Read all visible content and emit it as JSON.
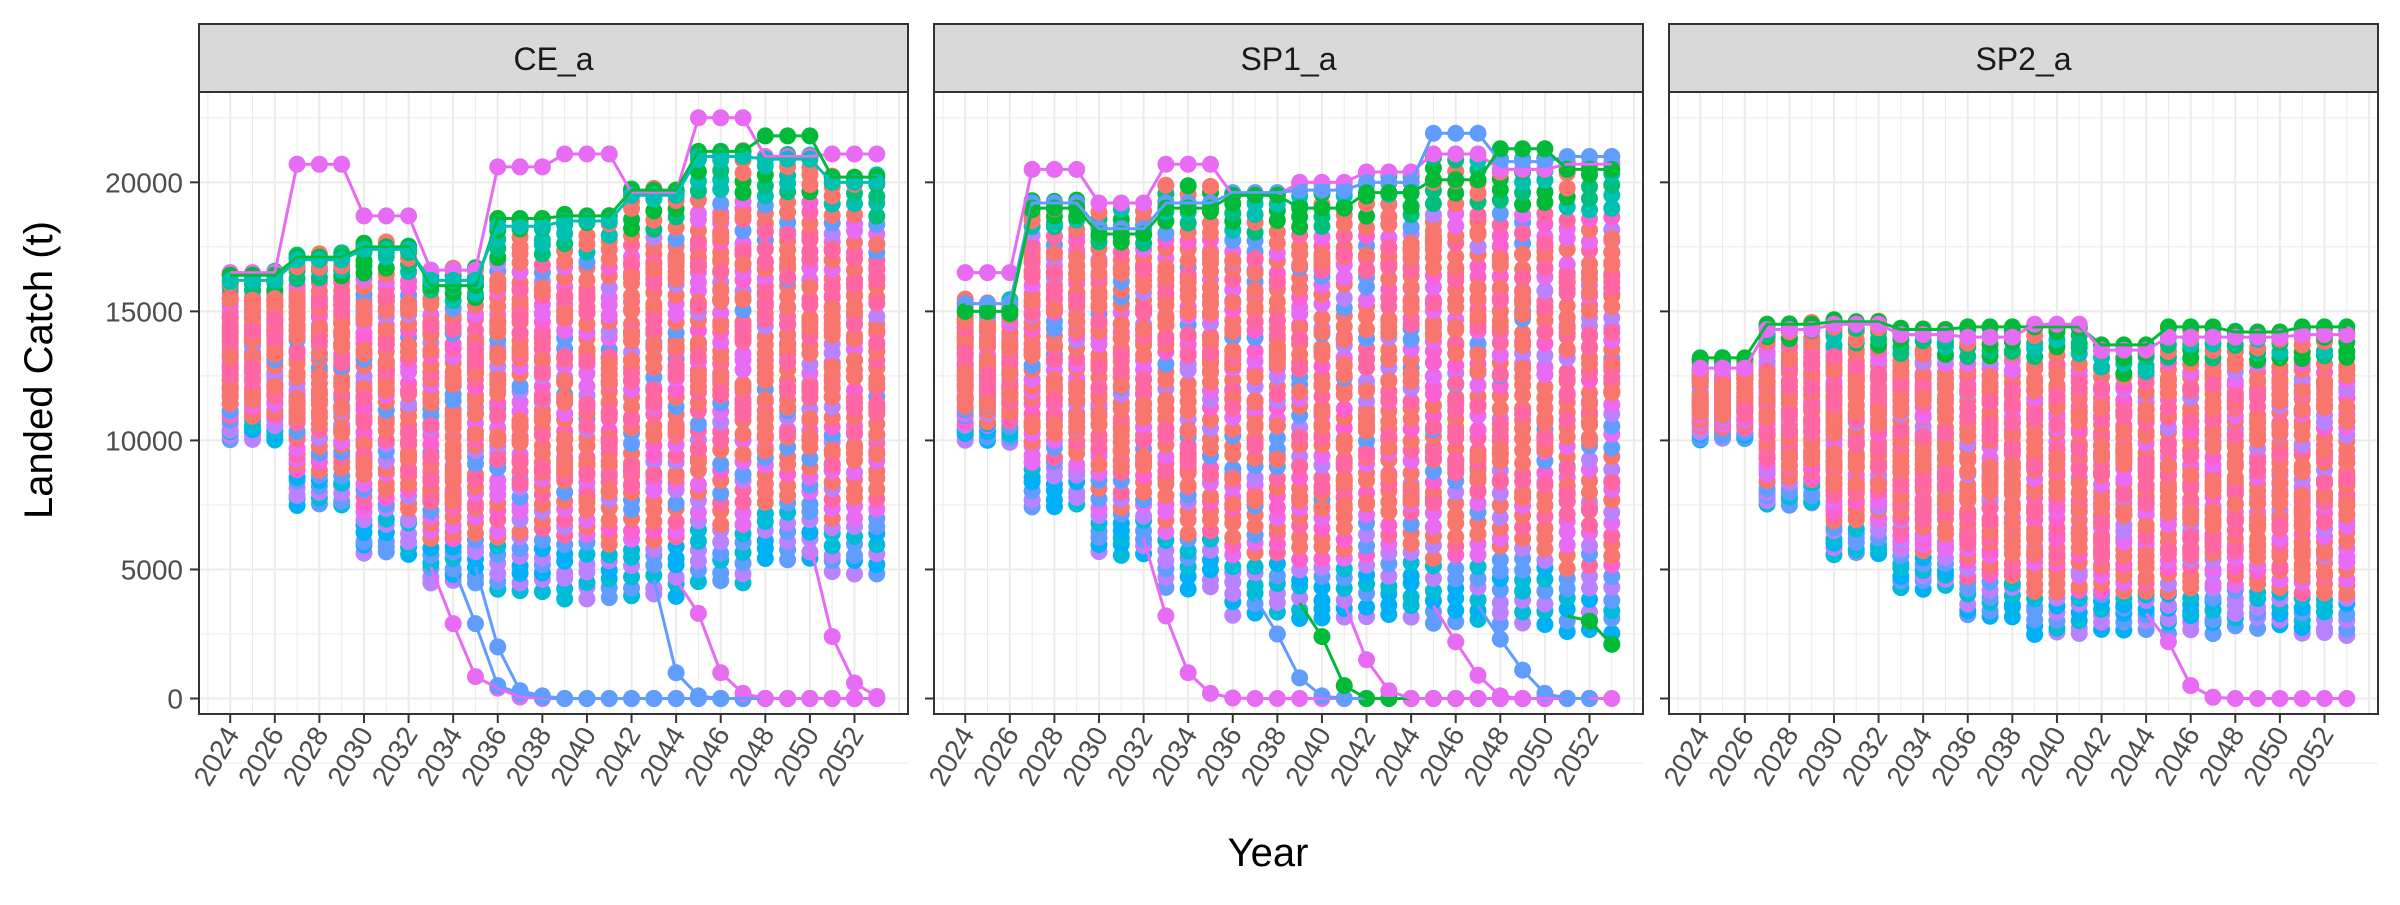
{
  "chart_data": {
    "type": "scatter",
    "xlabel": "Year",
    "ylabel": "Landed Catch (t)",
    "x_ticks": [
      2024,
      2026,
      2028,
      2030,
      2032,
      2034,
      2036,
      2038,
      2040,
      2042,
      2044,
      2046,
      2048,
      2050,
      2052
    ],
    "y_ticks": [
      0,
      5000,
      10000,
      15000,
      20000
    ],
    "x_range": [
      2022.6,
      2054.4
    ],
    "y_range": [
      -600,
      23500
    ],
    "grid": true,
    "legend": "none",
    "palette": [
      "#F8766D",
      "#E58700",
      "#C99800",
      "#A3A500",
      "#6BB100",
      "#00BA38",
      "#00BF7D",
      "#00C0AF",
      "#00BCD8",
      "#00B0F6",
      "#619CFF",
      "#B983FF",
      "#E76BF3",
      "#FD61D1",
      "#FF67A4"
    ],
    "panels": [
      {
        "title": "CE_a",
        "band_lo": [
          10000,
          10000,
          10000,
          7500,
          7500,
          7500,
          5600,
          5600,
          5600,
          4500,
          4500,
          4500,
          4200,
          4200,
          4200,
          3900,
          3900,
          3900,
          4000,
          4000,
          4000,
          4500,
          4500,
          4500,
          5400,
          5400,
          5400,
          4900,
          4900,
          4900
        ],
        "band_hi": [
          16500,
          16500,
          16500,
          17200,
          17200,
          17200,
          17600,
          17600,
          17600,
          16600,
          16600,
          16600,
          18500,
          18500,
          18500,
          18700,
          18700,
          18700,
          19700,
          19700,
          19700,
          21200,
          21200,
          21200,
          21000,
          21000,
          21000,
          20200,
          20200,
          20200
        ],
        "highs": [
          {
            "v": [
              16500,
              16500,
              16500,
              20700,
              20700,
              20700,
              18700,
              18700,
              18700,
              16600,
              16600,
              16600,
              20600,
              20600,
              20600,
              21100,
              21100,
              21100,
              19600,
              19600,
              19600,
              22500,
              22500,
              22500,
              21000,
              21000,
              21000,
              21100,
              21100,
              21100
            ],
            "c": 12
          },
          {
            "v": [
              16400,
              16400,
              16400,
              17100,
              17100,
              17100,
              17500,
              17500,
              17500,
              16000,
              16000,
              16000,
              18600,
              18600,
              18600,
              18700,
              18700,
              18700,
              19700,
              19700,
              19700,
              21200,
              21200,
              21200,
              21800,
              21800,
              21800,
              20200,
              20200,
              20200
            ],
            "c": 5
          },
          {
            "v": [
              16200,
              16200,
              16200,
              17000,
              17000,
              17000,
              17400,
              17400,
              17400,
              16200,
              16200,
              16200,
              18300,
              18300,
              18300,
              18500,
              18500,
              18500,
              19500,
              19500,
              19500,
              21000,
              21000,
              21000,
              20900,
              20900,
              20900,
              20000,
              20000,
              20000
            ],
            "c": 7
          }
        ],
        "collapses": [
          {
            "v": [
              2900,
              850,
              400,
              60,
              0,
              0,
              0,
              0,
              0,
              0,
              0,
              0,
              0,
              0,
              0,
              0,
              0,
              0,
              0
            ],
            "start": 2034,
            "c": 12
          },
          {
            "v": [
              2900,
              500,
              200,
              50,
              0,
              0,
              0,
              0,
              0,
              0,
              0,
              0,
              0,
              0,
              0,
              0,
              0,
              0
            ],
            "start": 2035,
            "c": 10
          },
          {
            "v": [
              2000,
              300,
              100,
              0,
              0,
              0,
              0,
              0,
              0,
              0,
              0,
              0,
              0,
              0,
              0,
              0,
              0
            ],
            "start": 2036,
            "c": 10
          },
          {
            "v": [
              1000,
              100,
              0,
              0,
              0,
              0,
              0,
              0,
              0,
              0
            ],
            "start": 2044,
            "c": 10
          },
          {
            "v": [
              3300,
              1000,
              200,
              0,
              0,
              0,
              0,
              0,
              0
            ],
            "start": 2045,
            "c": 12
          },
          {
            "v": [
              2400,
              600,
              80
            ],
            "start": 2051,
            "c": 12
          }
        ],
        "dense": [
          "#F8766D",
          "#FF67A4",
          "#E76BF3",
          "#B983FF",
          "#F8766D",
          "#FD61D1",
          "#F8766D",
          "#619CFF",
          "#E76BF3",
          "#F8766D"
        ]
      },
      {
        "title": "SP1_a",
        "band_lo": [
          10000,
          10000,
          10000,
          7500,
          7500,
          7500,
          5600,
          5600,
          5600,
          4300,
          4300,
          4300,
          3300,
          3300,
          3300,
          3100,
          3100,
          3100,
          3200,
          3200,
          3200,
          3000,
          3000,
          3000,
          2900,
          2900,
          2900,
          2600,
          2600,
          2600
        ],
        "band_hi": [
          15400,
          15400,
          15400,
          19300,
          19300,
          19300,
          18900,
          18900,
          18900,
          19900,
          19900,
          19900,
          19600,
          19600,
          19600,
          19900,
          19900,
          19900,
          20300,
          20300,
          20300,
          20900,
          20900,
          20900,
          20900,
          20900,
          20900,
          20700,
          20700,
          20700
        ],
        "highs": [
          {
            "v": [
              16500,
              16500,
              16500,
              20500,
              20500,
              20500,
              19200,
              19200,
              19200,
              20700,
              20700,
              20700,
              19500,
              19500,
              19500,
              20000,
              20000,
              20000,
              20400,
              20400,
              20400,
              21100,
              21100,
              21100,
              20500,
              20500,
              20500,
              20700,
              20700,
              20700
            ],
            "c": 12
          },
          {
            "v": [
              15300,
              15300,
              15300,
              19200,
              19200,
              19200,
              18200,
              18200,
              18200,
              19200,
              19200,
              19200,
              19600,
              19600,
              19600,
              19700,
              19700,
              19700,
              20000,
              20000,
              20000,
              21900,
              21900,
              21900,
              20800,
              20800,
              20800,
              21000,
              21000,
              21000
            ],
            "c": 10
          },
          {
            "v": [
              15000,
              15000,
              15000,
              19000,
              19000,
              19000,
              18000,
              18000,
              18000,
              19000,
              19000,
              19000,
              19500,
              19500,
              19500,
              19000,
              19000,
              19000,
              19600,
              19600,
              19600,
              20100,
              20100,
              20100,
              21300,
              21300,
              21300,
              20500,
              20500,
              20500
            ],
            "c": 5
          }
        ],
        "collapses": [
          {
            "v": [
              3200,
              1000,
              200,
              20,
              0,
              0,
              0,
              0,
              0,
              0,
              0,
              0,
              0,
              0,
              0,
              0,
              0,
              0,
              0,
              0,
              0
            ],
            "start": 2033,
            "c": 12
          },
          {
            "v": [
              2500,
              800,
              100,
              0,
              0,
              0,
              0,
              0,
              0,
              0,
              0,
              0,
              0,
              0,
              0
            ],
            "start": 2038,
            "c": 10
          },
          {
            "v": [
              2400,
              500,
              0,
              0,
              0,
              0,
              0,
              0,
              0,
              0,
              0,
              0,
              0
            ],
            "start": 2040,
            "c": 5
          },
          {
            "v": [
              1500,
              300,
              0,
              0,
              0,
              0,
              0,
              0,
              0,
              0,
              0
            ],
            "start": 2042,
            "c": 12
          },
          {
            "v": [
              2200,
              900,
              100,
              0,
              0,
              0,
              0
            ],
            "start": 2046,
            "c": 12
          },
          {
            "v": [
              2300,
              1100,
              200,
              0,
              0
            ],
            "start": 2048,
            "c": 10
          },
          {
            "v": [
              3000,
              2100
            ],
            "start": 2052,
            "c": 5
          }
        ],
        "dense": [
          "#F8766D",
          "#E76BF3",
          "#F8766D",
          "#B983FF",
          "#FF67A4",
          "#F8766D",
          "#E76BF3",
          "#619CFF",
          "#F8766D",
          "#FD61D1"
        ]
      },
      {
        "title": "SP2_a",
        "band_lo": [
          10000,
          10000,
          10000,
          7500,
          7500,
          7500,
          5600,
          5600,
          5600,
          4300,
          4300,
          4300,
          3200,
          3200,
          3200,
          2500,
          2500,
          2500,
          2700,
          2700,
          2700,
          2600,
          2600,
          2600,
          2800,
          2800,
          2800,
          2500,
          2500,
          2500
        ],
        "band_hi": [
          13200,
          13200,
          13200,
          14500,
          14500,
          14500,
          14600,
          14600,
          14600,
          14300,
          14300,
          14300,
          14300,
          14300,
          14300,
          14400,
          14400,
          14400,
          13700,
          13700,
          13700,
          14300,
          14300,
          14300,
          14200,
          14200,
          14200,
          14300,
          14300,
          14300
        ],
        "highs": [
          {
            "v": [
              13200,
              13200,
              13200,
              14500,
              14500,
              14500,
              14600,
              14600,
              14600,
              14300,
              14300,
              14300,
              14400,
              14400,
              14400,
              14400,
              14400,
              14400,
              13700,
              13700,
              13700,
              14400,
              14400,
              14400,
              14200,
              14200,
              14200,
              14400,
              14400,
              14400
            ],
            "c": 5
          },
          {
            "v": [
              12800,
              12800,
              12800,
              14300,
              14300,
              14300,
              14500,
              14500,
              14500,
              14100,
              14100,
              14100,
              14000,
              14000,
              14000,
              14500,
              14500,
              14500,
              13500,
              13500,
              13500,
              14000,
              14000,
              14000,
              14000,
              14000,
              14000,
              14100,
              14100,
              14100
            ],
            "c": 12
          }
        ],
        "collapses": [
          {
            "v": [
              2200,
              500,
              50,
              0,
              0,
              0,
              0,
              0,
              0
            ],
            "start": 2045,
            "c": 12
          }
        ],
        "dense": [
          "#F8766D",
          "#E76BF3",
          "#F8766D",
          "#FF67A4",
          "#B983FF",
          "#F8766D",
          "#E76BF3",
          "#F8766D",
          "#FD61D1",
          "#F8766D"
        ]
      }
    ]
  }
}
